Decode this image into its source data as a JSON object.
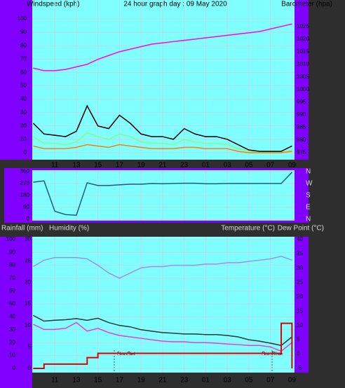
{
  "chart_data": [
    {
      "type": "line",
      "title_left": "Windspeed (kph)",
      "title": "24 hour graph day : 09 May 2020",
      "title_right": "Barometer (hpa)",
      "categories": [
        null,
        null,
        "11",
        null,
        "13",
        null,
        "15",
        null,
        "17",
        null,
        "19",
        null,
        "21",
        null,
        "23",
        null,
        "01",
        null,
        "03",
        null,
        "05",
        null,
        "07",
        null,
        "09"
      ],
      "ylim": [
        0,
        100
      ],
      "yticks": [
        0,
        10,
        20,
        30,
        40,
        50,
        60,
        70,
        80,
        90,
        100
      ],
      "y2lim": [
        975,
        1028
      ],
      "y2ticks": [
        975,
        980,
        985,
        990,
        995,
        1000,
        1005,
        1010,
        1015,
        1020,
        1025
      ],
      "grid": true,
      "series": [
        {
          "color": "#80ff80",
          "values": [
            12,
            7,
            7,
            6,
            8,
            15,
            12,
            10,
            14,
            12,
            8,
            7,
            7,
            6,
            10,
            8,
            7,
            7,
            6,
            3,
            1,
            0,
            0,
            0,
            2
          ]
        },
        {
          "color": "#000000",
          "values": [
            22,
            14,
            13,
            12,
            16,
            35,
            20,
            18,
            28,
            22,
            14,
            12,
            12,
            10,
            18,
            14,
            12,
            12,
            10,
            6,
            2,
            1,
            1,
            1,
            5
          ]
        },
        {
          "color": "#ff8000",
          "values": [
            5,
            3,
            3,
            3,
            4,
            6,
            5,
            4,
            6,
            5,
            4,
            3,
            3,
            3,
            4,
            4,
            3,
            3,
            3,
            1,
            0,
            0,
            0,
            0,
            1
          ]
        },
        {
          "color": "#ff00ff",
          "axis": "y2",
          "values": [
            1008.5,
            1007.5,
            1007.5,
            1008,
            1009,
            1010,
            1012,
            1013.5,
            1015,
            1016,
            1017,
            1018,
            1018.5,
            1019,
            1019.5,
            1020,
            1020.5,
            1021,
            1021.5,
            1022,
            1022.5,
            1023,
            1024,
            1025,
            1026
          ]
        }
      ]
    },
    {
      "type": "line",
      "categories": [
        null,
        null,
        "11",
        null,
        "13",
        null,
        "15",
        null,
        "17",
        null,
        "19",
        null,
        "21",
        null,
        "23",
        null,
        "01",
        null,
        "03",
        null,
        "05",
        null,
        "07",
        null,
        "09"
      ],
      "ylim": [
        0,
        360
      ],
      "yticks": [
        0,
        90,
        180,
        270,
        360
      ],
      "y2lim": [
        0,
        360
      ],
      "y2ticks": [
        {
          "value": 0,
          "label": "N"
        },
        {
          "value": 90,
          "label": "E"
        },
        {
          "value": 180,
          "label": "S"
        },
        {
          "value": 270,
          "label": "W"
        },
        {
          "value": 360,
          "label": "N"
        }
      ],
      "grid": true,
      "series": [
        {
          "color": "#1a5f80",
          "values": [
            280,
            290,
            60,
            35,
            30,
            275,
            255,
            255,
            260,
            265,
            265,
            270,
            268,
            270,
            272,
            272,
            268,
            268,
            270,
            270,
            270,
            270,
            270,
            270,
            355
          ]
        }
      ]
    },
    {
      "type": "line",
      "y_label": "Rainfall (mm)",
      "y_label_2": "Humidity (%)",
      "y2_label": "Temperature (°C)",
      "y2_label_2": "Dew Point (°C)",
      "categories": [
        null,
        null,
        "11",
        null,
        "13",
        null,
        "15",
        null,
        "17",
        null,
        "19",
        null,
        "21",
        null,
        "23",
        null,
        "01",
        null,
        "03",
        null,
        "05",
        null,
        "07",
        null,
        "09"
      ],
      "ylim": [
        0,
        100
      ],
      "yticks": [
        0,
        10,
        20,
        30,
        40,
        50,
        60,
        70,
        80,
        90,
        100
      ],
      "y2lim": [
        -5,
        40
      ],
      "y2ticks": [
        -5,
        0,
        5,
        10,
        15,
        20,
        25,
        30,
        35,
        40
      ],
      "y3lim": [
        0,
        30
      ],
      "y3ticks": [
        0,
        5,
        10,
        15,
        20,
        25,
        30
      ],
      "y3color": "#e00000",
      "grid": true,
      "annotations": [
        "SunSet",
        "SunRise"
      ],
      "series": [
        {
          "color": "#a08ff0",
          "values": [
            79,
            84,
            86,
            86,
            86,
            85,
            80,
            74,
            70,
            74,
            78,
            79,
            79,
            80,
            80,
            80,
            81,
            81,
            82,
            82,
            83,
            84,
            85,
            87,
            84
          ]
        },
        {
          "color": "#1f3a3a",
          "axis": "y2",
          "values": [
            13.5,
            11.5,
            11.8,
            12,
            12.4,
            11.8,
            12.5,
            11,
            10,
            9.5,
            8.5,
            8,
            7.5,
            7.3,
            7,
            7,
            6.8,
            6.8,
            6.5,
            6,
            5,
            4.5,
            3.8,
            3,
            6
          ]
        },
        {
          "color": "#e040e0",
          "axis": "y2",
          "values": [
            10.4,
            8.6,
            8.6,
            9,
            11,
            8,
            9,
            7.5,
            6.5,
            6,
            5.5,
            5,
            4.5,
            4.3,
            4.3,
            4,
            4,
            3.8,
            3.5,
            3.3,
            3,
            3,
            2.5,
            1,
            4
          ]
        },
        {
          "color": "#e00000",
          "axis": "y3",
          "step": true,
          "values": [
            0,
            1,
            1,
            1,
            1,
            2.5,
            3.5,
            3.5,
            3.5,
            3.5,
            3.5,
            3.5,
            3.5,
            3.5,
            3.5,
            3.5,
            3.5,
            3.5,
            3.5,
            3.5,
            3.5,
            3.5,
            3.5,
            10.5,
            0
          ]
        }
      ]
    }
  ]
}
